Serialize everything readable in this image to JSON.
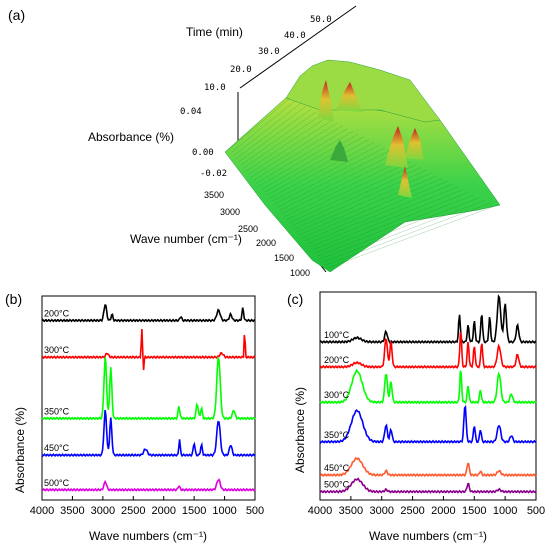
{
  "chart_data": [
    {
      "panel_label": "(a)",
      "type": "surface",
      "title": "",
      "xlabel": "Wave number (cm⁻¹)",
      "ylabel": "Time (min)",
      "zlabel": "Absorbance (%)",
      "x_ticks": [
        "3500",
        "3000",
        "2500",
        "2000",
        "1500",
        "1000"
      ],
      "y_ticks": [
        "10.0",
        "20.0",
        "30.0",
        "40.0",
        "50.0"
      ],
      "z_ticks": [
        "0.04",
        "0.00",
        "-0.02"
      ],
      "colors": {
        "low": "#22c83c",
        "mid": "#d4e64a",
        "high": "#c01e1e"
      }
    },
    {
      "panel_label": "(b)",
      "type": "line",
      "title": "",
      "xlabel": "Wave numbers (cm⁻¹)",
      "ylabel": "Absorbance (%)",
      "xlim": [
        4000,
        500
      ],
      "x_ticks": [
        "4000",
        "3500",
        "3000",
        "2500",
        "2000",
        "1500",
        "1000",
        "500"
      ],
      "series": [
        {
          "name": "200°C",
          "color": "#000000",
          "baseline": 0.88,
          "peaks": [
            [
              2960,
              0.08,
              30
            ],
            [
              2850,
              0.03,
              20
            ],
            [
              1720,
              0.02,
              20
            ],
            [
              1100,
              0.05,
              40
            ],
            [
              900,
              0.03,
              30
            ],
            [
              700,
              0.06,
              20
            ]
          ]
        },
        {
          "name": "300°C",
          "color": "#ff0000",
          "baseline": 0.7,
          "peaks": [
            [
              2360,
              0.14,
              12
            ],
            [
              2330,
              -0.06,
              10
            ],
            [
              2930,
              0.02,
              30
            ],
            [
              1050,
              0.02,
              40
            ],
            [
              670,
              0.14,
              10
            ]
          ]
        },
        {
          "name": "350°C",
          "color": "#00ff00",
          "baseline": 0.4,
          "peaks": [
            [
              2960,
              0.3,
              30
            ],
            [
              2870,
              0.25,
              25
            ],
            [
              1750,
              0.06,
              20
            ],
            [
              1450,
              0.07,
              25
            ],
            [
              1380,
              0.05,
              20
            ],
            [
              1100,
              0.3,
              40
            ],
            [
              850,
              0.04,
              30
            ]
          ]
        },
        {
          "name": "450°C",
          "color": "#0000ff",
          "baseline": 0.22,
          "peaks": [
            [
              2960,
              0.22,
              30
            ],
            [
              2870,
              0.18,
              25
            ],
            [
              2300,
              0.03,
              40
            ],
            [
              1740,
              0.08,
              15
            ],
            [
              1500,
              0.06,
              20
            ],
            [
              1380,
              0.05,
              20
            ],
            [
              1100,
              0.17,
              40
            ],
            [
              900,
              0.05,
              30
            ]
          ]
        },
        {
          "name": "500°C",
          "color": "#dd00dd",
          "baseline": 0.05,
          "peaks": [
            [
              2960,
              0.04,
              30
            ],
            [
              1750,
              0.02,
              20
            ],
            [
              1100,
              0.05,
              40
            ]
          ]
        }
      ]
    },
    {
      "panel_label": "(c)",
      "type": "line",
      "title": "",
      "xlabel": "Wave numbers (cm⁻¹)",
      "ylabel": "Absorbance (%)",
      "xlim": [
        4000,
        500
      ],
      "x_ticks": [
        "4000",
        "3500",
        "3000",
        "2500",
        "2000",
        "1500",
        "1000",
        "500"
      ],
      "series": [
        {
          "name": "100°C",
          "color": "#000000",
          "baseline": 0.76,
          "peaks": [
            [
              3400,
              0.02,
              100
            ],
            [
              2930,
              0.05,
              30
            ],
            [
              1740,
              0.13,
              20
            ],
            [
              1600,
              0.08,
              20
            ],
            [
              1500,
              0.1,
              20
            ],
            [
              1380,
              0.14,
              20
            ],
            [
              1250,
              0.12,
              20
            ],
            [
              1100,
              0.22,
              40
            ],
            [
              1000,
              0.18,
              30
            ],
            [
              800,
              0.08,
              30
            ]
          ]
        },
        {
          "name": "200°C",
          "color": "#ff0000",
          "baseline": 0.64,
          "peaks": [
            [
              3400,
              0.02,
              100
            ],
            [
              2930,
              0.14,
              30
            ],
            [
              2850,
              0.12,
              25
            ],
            [
              1720,
              0.18,
              20
            ],
            [
              1600,
              0.12,
              20
            ],
            [
              1500,
              0.1,
              20
            ],
            [
              1380,
              0.12,
              20
            ],
            [
              1100,
              0.1,
              40
            ],
            [
              800,
              0.06,
              30
            ]
          ]
        },
        {
          "name": "300°C",
          "color": "#00ff00",
          "baseline": 0.47,
          "peaks": [
            [
              3400,
              0.15,
              120
            ],
            [
              2930,
              0.14,
              30
            ],
            [
              2850,
              0.1,
              25
            ],
            [
              1720,
              0.16,
              20
            ],
            [
              1600,
              0.08,
              20
            ],
            [
              1400,
              0.06,
              20
            ],
            [
              1100,
              0.14,
              40
            ],
            [
              900,
              0.04,
              30
            ]
          ]
        },
        {
          "name": "350°C",
          "color": "#0000ff",
          "baseline": 0.28,
          "peaks": [
            [
              3400,
              0.15,
              130
            ],
            [
              2930,
              0.08,
              30
            ],
            [
              2850,
              0.06,
              25
            ],
            [
              1650,
              0.18,
              25
            ],
            [
              1500,
              0.08,
              20
            ],
            [
              1400,
              0.06,
              20
            ],
            [
              1100,
              0.08,
              40
            ],
            [
              900,
              0.03,
              30
            ]
          ]
        },
        {
          "name": "450°C",
          "color": "#ff5a2d",
          "baseline": 0.12,
          "peaks": [
            [
              3400,
              0.08,
              130
            ],
            [
              2930,
              0.02,
              30
            ],
            [
              1600,
              0.06,
              25
            ],
            [
              1400,
              0.02,
              20
            ],
            [
              1100,
              0.02,
              40
            ]
          ]
        },
        {
          "name": "500°C",
          "color": "#8b008b",
          "baseline": 0.04,
          "peaks": [
            [
              3400,
              0.06,
              130
            ],
            [
              2930,
              0.01,
              30
            ],
            [
              1600,
              0.04,
              25
            ],
            [
              1100,
              0.01,
              40
            ]
          ]
        }
      ]
    }
  ]
}
